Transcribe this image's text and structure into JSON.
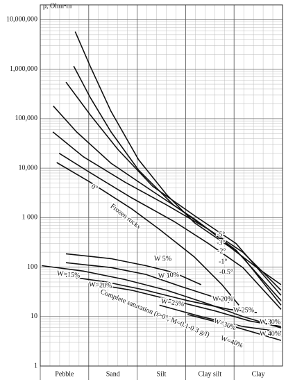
{
  "chart_data": {
    "type": "line",
    "ylabel": "ρ, Ohm•m",
    "categories": [
      "Pebble",
      "Sand",
      "Silt",
      "Clay silt",
      "Clay"
    ],
    "xlim": [
      0,
      5
    ],
    "ylim": [
      1,
      20000000
    ],
    "log_y": true,
    "grid": true,
    "yticks": [
      {
        "value": 1,
        "label": "1"
      },
      {
        "value": 10,
        "label": "10"
      },
      {
        "value": 100,
        "label": "100"
      },
      {
        "value": 1000,
        "label": "1 000"
      },
      {
        "value": 10000,
        "label": "10,000"
      },
      {
        "value": 100000,
        "label": "100,000"
      },
      {
        "value": 1000000,
        "label": "1,000,000"
      },
      {
        "value": 10000000,
        "label": "10,000,000"
      }
    ],
    "series": [
      {
        "color": "#111111",
        "x": [
          0.72,
          1.03,
          1.46,
          2.03,
          2.61,
          3.18,
          3.9,
          4.47,
          4.97
        ],
        "values": [
          5750000,
          1150000,
          141000,
          14800,
          2900,
          790,
          260,
          98,
          44
        ]
      },
      {
        "name": "-5°",
        "color": "#111111",
        "x": [
          0.69,
          1.03,
          1.46,
          2.03,
          2.75,
          3.47,
          4.18,
          4.97
        ],
        "values": [
          1150000,
          270000,
          54000,
          9100,
          1800,
          580,
          200,
          34
        ]
      },
      {
        "name": "-3°",
        "color": "#111111",
        "x": [
          0.53,
          1.03,
          1.6,
          2.32,
          3.18,
          4.04,
          4.97
        ],
        "values": [
          550000,
          120000,
          24000,
          4300,
          1100,
          300,
          27
        ]
      },
      {
        "name": "-2°",
        "color": "#111111",
        "x": [
          0.27,
          0.75,
          1.46,
          2.32,
          3.18,
          4.04,
          4.97
        ],
        "values": [
          180000,
          54000,
          12600,
          3400,
          940,
          220,
          21
        ]
      },
      {
        "name": "-1°",
        "color": "#111111",
        "x": [
          0.26,
          0.89,
          1.75,
          2.61,
          3.47,
          4.18,
          4.97
        ],
        "values": [
          54000,
          17000,
          5200,
          1800,
          580,
          160,
          17
        ]
      },
      {
        "name": "-0.5°",
        "color": "#111111",
        "x": [
          0.39,
          1.03,
          1.89,
          2.75,
          3.47,
          4.18,
          4.97
        ],
        "values": [
          20000,
          8100,
          2500,
          850,
          300,
          98,
          14
        ]
      },
      {
        "name": "0°",
        "color": "#111111",
        "x": [
          0.34,
          1.03,
          1.89,
          2.46,
          3.18,
          3.75,
          4.1
        ],
        "values": [
          13000,
          5200,
          1500,
          580,
          160,
          44,
          17
        ]
      },
      {
        "name": "W 5%",
        "color": "#111111",
        "x": [
          0.53,
          1.46,
          2.18,
          2.75,
          3.32
        ],
        "values": [
          186,
          148,
          107,
          78,
          44
        ]
      },
      {
        "name": "W 10%",
        "color": "#111111",
        "x": [
          0.53,
          1.46,
          2.18,
          2.89,
          3.47,
          3.9
        ],
        "values": [
          123,
          98,
          71,
          41,
          27,
          19.5
        ]
      },
      {
        "name": "W=15%",
        "color": "#111111",
        "x": [
          0.03,
          0.89,
          1.75,
          2.61,
          3.47,
          4.18,
          4.97
        ],
        "values": [
          107,
          83,
          56,
          34,
          18,
          10,
          5.9
        ]
      },
      {
        "name": "W=20%",
        "color": "#111111",
        "x": [
          0.53,
          1.32,
          2.18,
          3.04,
          3.9,
          4.47
        ],
        "values": [
          65,
          51,
          34,
          21,
          14,
          12
        ]
      },
      {
        "name": "W=25%",
        "color": "#111111",
        "x": [
          1.03,
          1.89,
          2.75,
          3.61,
          4.33,
          4.97
        ],
        "values": [
          47,
          34,
          21,
          13,
          8.1,
          6.3
        ]
      },
      {
        "name": "W=30%",
        "color": "#111111",
        "x": [
          2.46,
          3.32,
          4.18,
          4.97
        ],
        "values": [
          17,
          10,
          6.3,
          4.9
        ]
      },
      {
        "name": "W=40%",
        "color": "#111111",
        "x": [
          3.04,
          3.9,
          4.47,
          4.97
        ],
        "values": [
          11,
          6.7,
          4.6,
          3.3
        ]
      }
    ],
    "annotations": [
      "Frozen rocks",
      "W 20%",
      "W 25%",
      "W 30%",
      "W 40%",
      "Complete saturation (t>0°, M=0.1-0.3 g/l)"
    ]
  }
}
